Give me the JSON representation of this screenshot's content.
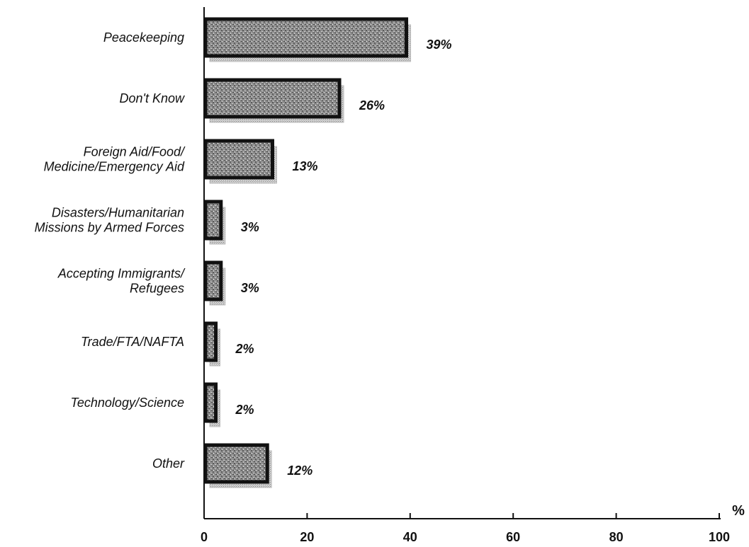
{
  "chart_data": {
    "type": "bar",
    "orientation": "horizontal",
    "categories": [
      [
        "Peacekeeping"
      ],
      [
        "Don't Know"
      ],
      [
        "Foreign Aid/Food/",
        "Medicine/Emergency Aid"
      ],
      [
        "Disasters/Humanitarian",
        "Missions by Armed Forces"
      ],
      [
        "Accepting Immigrants/",
        "Refugees"
      ],
      [
        "Trade/FTA/NAFTA"
      ],
      [
        "Technology/Science"
      ],
      [
        "Other"
      ]
    ],
    "values": [
      39,
      26,
      13,
      3,
      3,
      2,
      2,
      12
    ],
    "value_labels": [
      "39%",
      "26%",
      "13%",
      "3%",
      "3%",
      "2%",
      "2%",
      "12%"
    ],
    "xlim": [
      0,
      100
    ],
    "xticks": [
      0,
      20,
      40,
      60,
      80,
      100
    ],
    "xtick_labels": [
      "0",
      "20",
      "40",
      "60",
      "80",
      "100"
    ],
    "xunit": "%",
    "title": "",
    "xlabel": "",
    "ylabel": "",
    "grid": false,
    "legend": "none"
  },
  "colors": {
    "bar_fill": "#8a8a8a",
    "bar_outline": "#111111",
    "shadow": "#bdbdbd",
    "axis": "#111111",
    "text": "#111111"
  }
}
